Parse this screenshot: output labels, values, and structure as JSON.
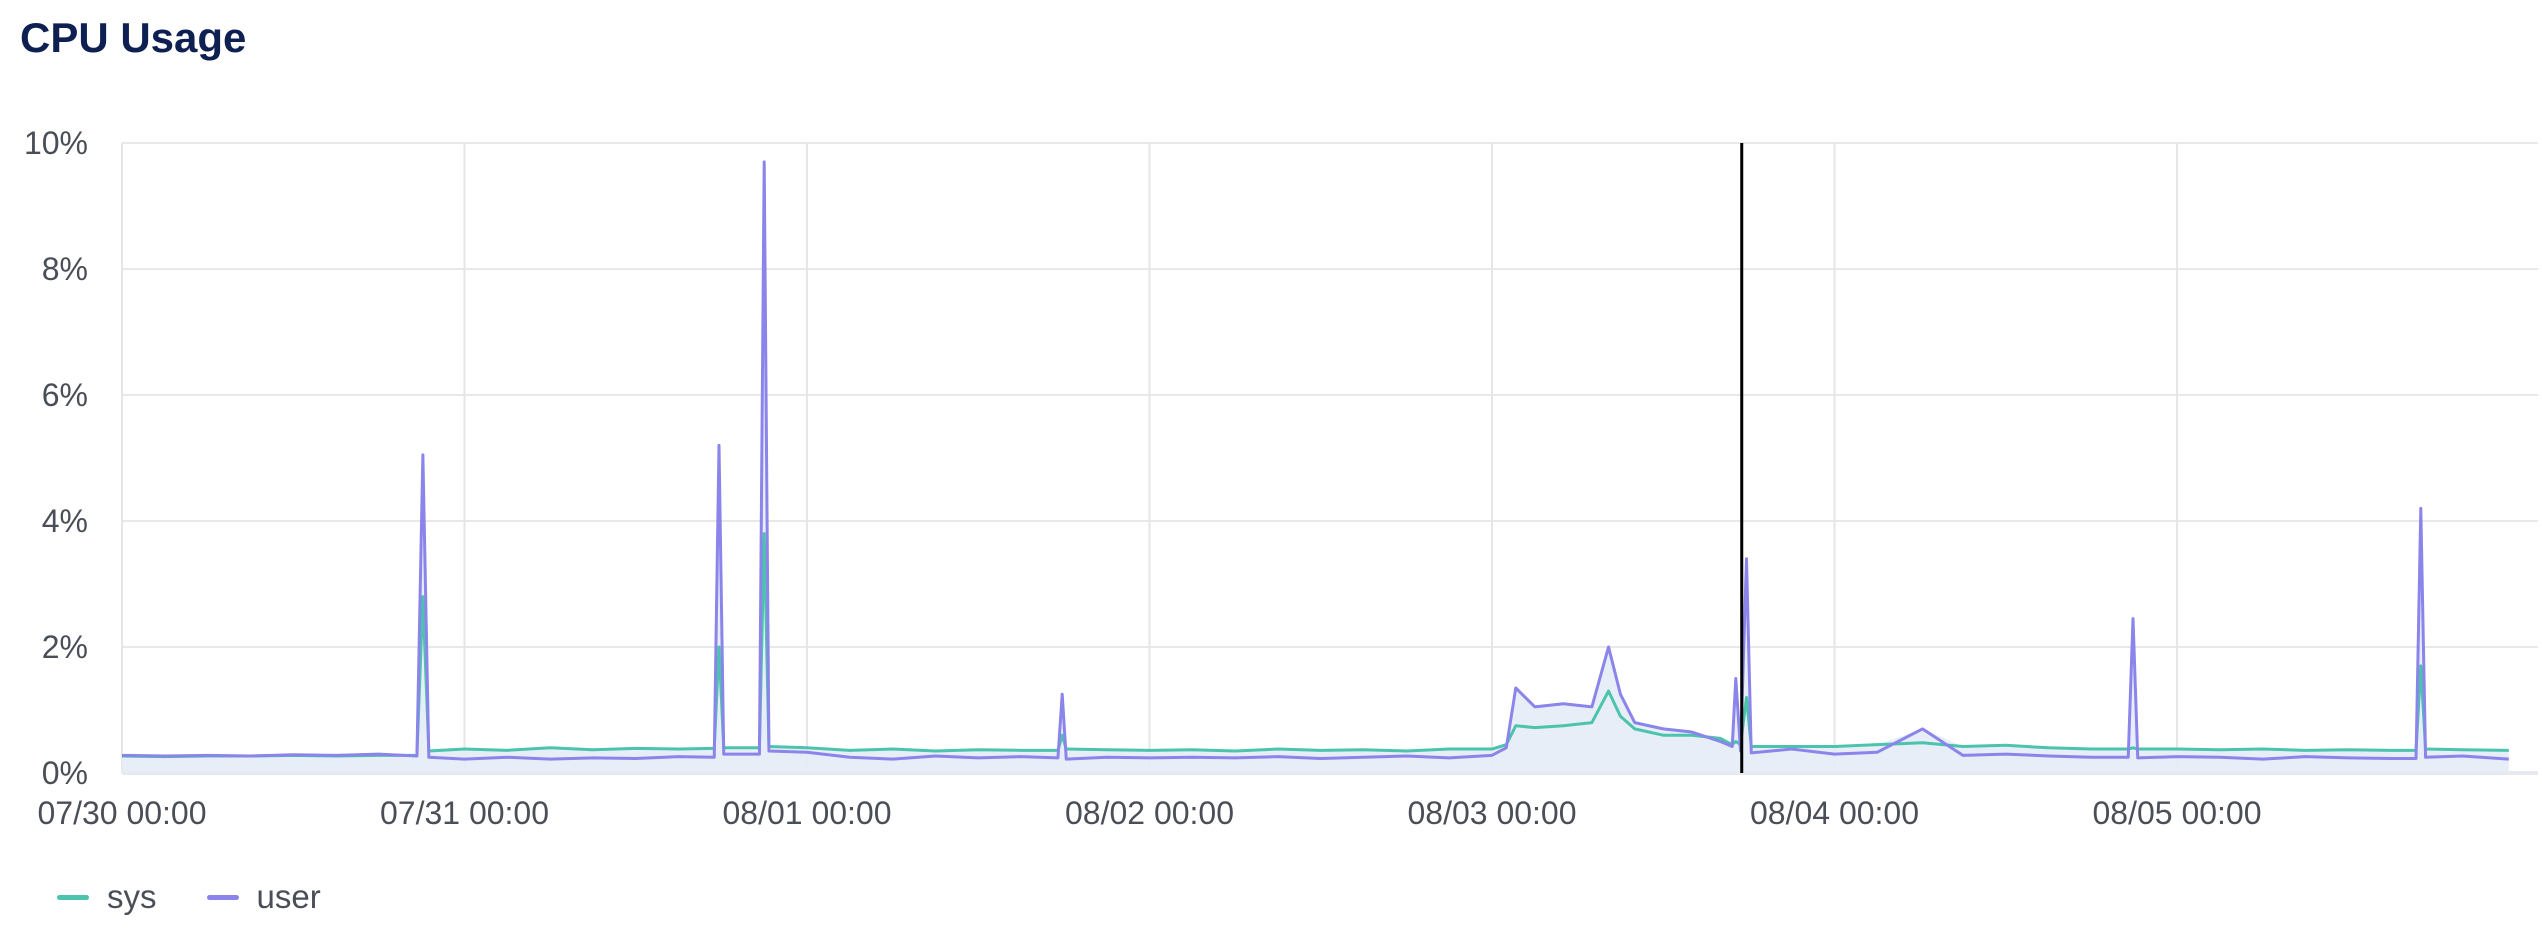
{
  "title": "CPU Usage",
  "chart_data": {
    "type": "line",
    "title": "CPU Usage",
    "xlabel": "",
    "ylabel": "",
    "ylim": [
      0,
      10
    ],
    "y_ticks": [
      "0%",
      "2%",
      "4%",
      "6%",
      "8%",
      "10%"
    ],
    "x_ticks": [
      "07/30 00:00",
      "07/31 00:00",
      "08/01 00:00",
      "08/02 00:00",
      "08/03 00:00",
      "08/04 00:00",
      "08/05 00:00"
    ],
    "grid": true,
    "legend": "bottom-left",
    "cursor_time": "08/03 17:30",
    "x": [
      "07/30 00:00",
      "07/30 03:00",
      "07/30 06:00",
      "07/30 09:00",
      "07/30 12:00",
      "07/30 15:00",
      "07/30 18:00",
      "07/30 20:40",
      "07/30 21:05",
      "07/30 21:30",
      "07/31 00:00",
      "07/31 03:00",
      "07/31 06:00",
      "07/31 09:00",
      "07/31 12:00",
      "07/31 15:00",
      "07/31 17:30",
      "07/31 17:50",
      "07/31 18:10",
      "07/31 20:40",
      "07/31 21:00",
      "07/31 21:20",
      "08/01 00:00",
      "08/01 03:00",
      "08/01 06:00",
      "08/01 09:00",
      "08/01 12:00",
      "08/01 15:00",
      "08/01 17:35",
      "08/01 17:53",
      "08/01 18:10",
      "08/01 21:00",
      "08/02 00:00",
      "08/02 03:00",
      "08/02 06:00",
      "08/02 09:00",
      "08/02 12:00",
      "08/02 15:00",
      "08/02 18:00",
      "08/02 21:00",
      "08/03 00:00",
      "08/03 01:00",
      "08/03 01:40",
      "08/03 03:00",
      "08/03 05:00",
      "08/03 07:00",
      "08/03 08:10",
      "08/03 09:00",
      "08/03 10:00",
      "08/03 12:00",
      "08/03 14:00",
      "08/03 16:00",
      "08/03 16:50",
      "08/03 17:05",
      "08/03 17:25",
      "08/03 17:50",
      "08/03 18:10",
      "08/03 21:00",
      "08/04 00:00",
      "08/04 03:00",
      "08/04 06:10",
      "08/04 09:00",
      "08/04 12:00",
      "08/04 15:00",
      "08/04 18:00",
      "08/04 20:35",
      "08/04 20:55",
      "08/04 21:15",
      "08/05 00:00",
      "08/05 03:00",
      "08/05 06:00",
      "08/05 09:00",
      "08/05 12:00",
      "08/05 15:00",
      "08/05 16:45",
      "08/05 17:05",
      "08/05 17:25",
      "08/05 20:00",
      "08/05 23:15"
    ],
    "series": [
      {
        "name": "sys",
        "color": "#4cc3ad",
        "values": [
          0.27,
          0.26,
          0.27,
          0.27,
          0.28,
          0.27,
          0.28,
          0.28,
          2.8,
          0.35,
          0.38,
          0.36,
          0.4,
          0.37,
          0.39,
          0.38,
          0.39,
          2.0,
          0.4,
          0.4,
          3.8,
          0.42,
          0.4,
          0.36,
          0.38,
          0.35,
          0.37,
          0.36,
          0.36,
          0.6,
          0.38,
          0.37,
          0.36,
          0.37,
          0.35,
          0.38,
          0.36,
          0.37,
          0.35,
          0.38,
          0.38,
          0.45,
          0.75,
          0.72,
          0.75,
          0.8,
          1.3,
          0.9,
          0.7,
          0.6,
          0.6,
          0.55,
          0.45,
          0.5,
          0.45,
          1.2,
          0.42,
          0.42,
          0.42,
          0.45,
          0.48,
          0.42,
          0.44,
          0.4,
          0.38,
          0.38,
          0.4,
          0.38,
          0.38,
          0.37,
          0.38,
          0.36,
          0.37,
          0.36,
          0.36,
          1.7,
          0.38,
          0.37,
          0.36
        ]
      },
      {
        "name": "user",
        "color": "#8b84ea",
        "values": [
          0.28,
          0.27,
          0.28,
          0.27,
          0.29,
          0.28,
          0.3,
          0.27,
          5.05,
          0.25,
          0.22,
          0.25,
          0.22,
          0.24,
          0.23,
          0.26,
          0.25,
          5.2,
          0.3,
          0.3,
          9.7,
          0.35,
          0.33,
          0.25,
          0.22,
          0.27,
          0.24,
          0.26,
          0.24,
          1.25,
          0.22,
          0.25,
          0.24,
          0.25,
          0.24,
          0.26,
          0.23,
          0.25,
          0.27,
          0.24,
          0.28,
          0.4,
          1.35,
          1.05,
          1.1,
          1.05,
          2.0,
          1.25,
          0.8,
          0.7,
          0.65,
          0.5,
          0.42,
          1.5,
          0.35,
          3.4,
          0.32,
          0.38,
          0.3,
          0.33,
          0.7,
          0.28,
          0.3,
          0.27,
          0.25,
          0.25,
          2.45,
          0.24,
          0.26,
          0.25,
          0.22,
          0.26,
          0.24,
          0.23,
          0.23,
          4.2,
          0.25,
          0.27,
          0.22
        ]
      }
    ]
  }
}
